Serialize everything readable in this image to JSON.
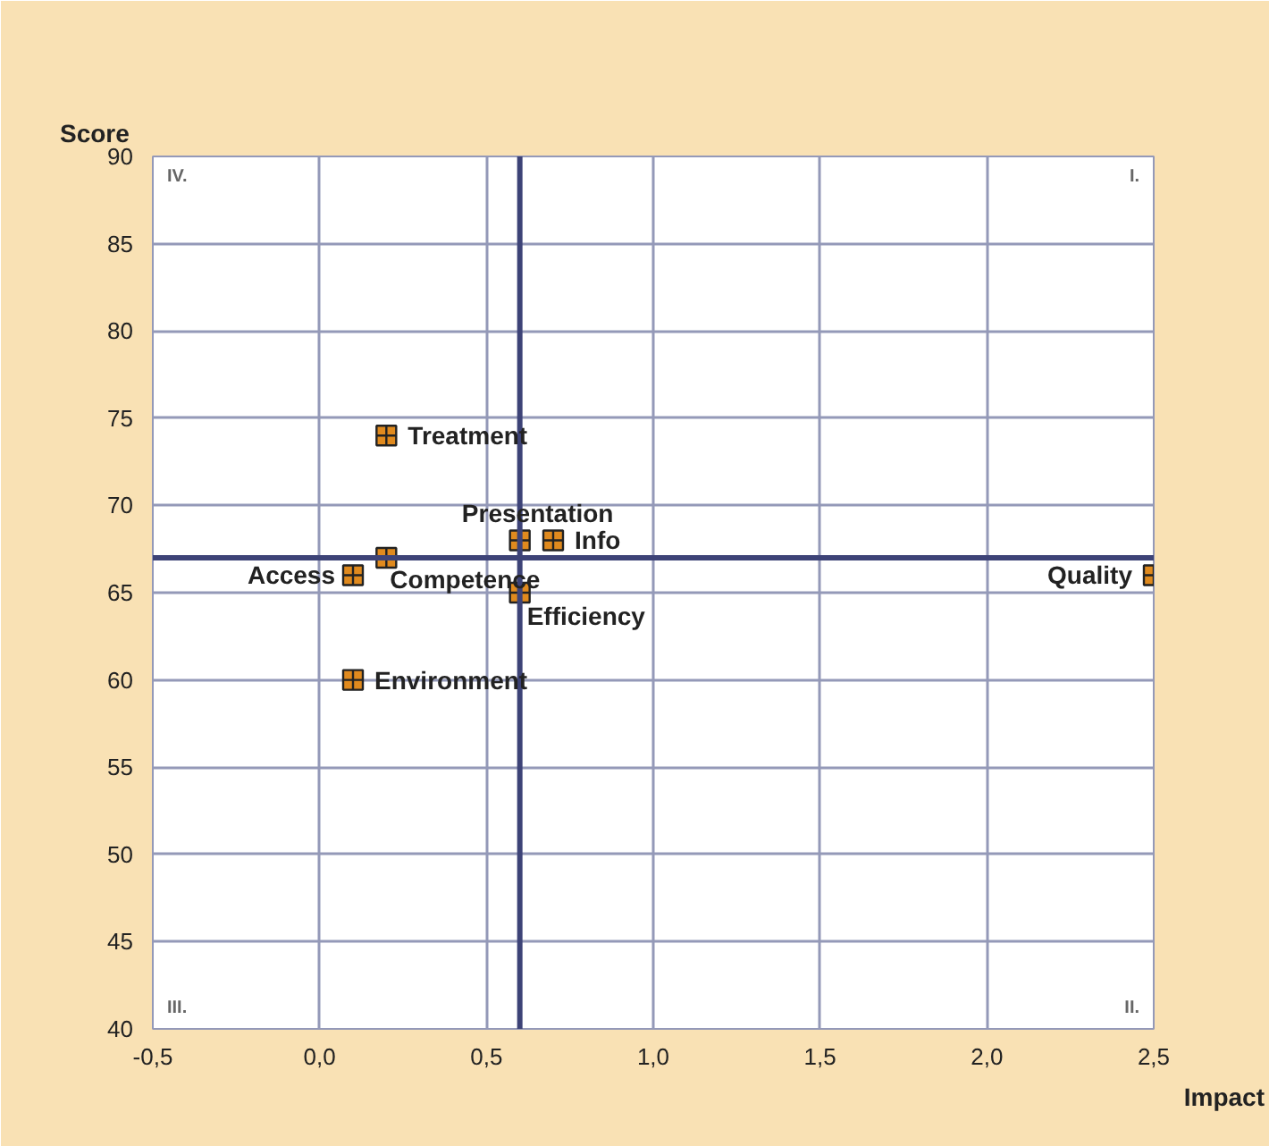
{
  "chart_data": {
    "type": "scatter",
    "xlabel": "Impact",
    "ylabel": "Score",
    "x": [
      0.2,
      0.6,
      0.7,
      0.2,
      0.1,
      0.6,
      0.1,
      2.5
    ],
    "series": [
      {
        "color": "#e08a1e",
        "values": [
          74,
          68,
          68,
          67,
          66,
          65,
          60,
          66
        ]
      }
    ],
    "marker": "cross",
    "xlim": [
      -0.5,
      2.5
    ],
    "ylim": [
      40,
      90
    ],
    "xticks": [
      {
        "value": -0.5,
        "label": "-0,5"
      },
      {
        "value": 0,
        "label": "0,0"
      },
      {
        "value": 0.5,
        "label": "0,5"
      },
      {
        "value": 1,
        "label": "1,0"
      },
      {
        "value": 1.5,
        "label": "1,5"
      },
      {
        "value": 2,
        "label": "2,0"
      },
      {
        "value": 2.5,
        "label": "2,5"
      }
    ],
    "yticks": [
      40,
      45,
      50,
      55,
      60,
      65,
      70,
      75,
      80,
      85,
      90
    ],
    "grid": true,
    "ref_lines": [
      {
        "axis": "x",
        "value": 0.6,
        "color": "#3d4377"
      },
      {
        "axis": "y",
        "value": 67,
        "color": "#3d4377"
      }
    ],
    "annotations": [
      {
        "text": "Treatment",
        "x": 0.2,
        "y": 74
      },
      {
        "text": "Presentation",
        "x": 0.6,
        "y": 68
      },
      {
        "text": "Info",
        "x": 0.7,
        "y": 68
      },
      {
        "text": "Competence",
        "x": 0.2,
        "y": 67
      },
      {
        "text": "Access",
        "x": 0.1,
        "y": 66
      },
      {
        "text": "Efficiency",
        "x": 0.6,
        "y": 65
      },
      {
        "text": "Environment",
        "x": 0.1,
        "y": 60
      },
      {
        "text": "Quality",
        "x": 2.5,
        "y": 66
      },
      "IV.",
      "I.",
      "III.",
      "II."
    ]
  }
}
